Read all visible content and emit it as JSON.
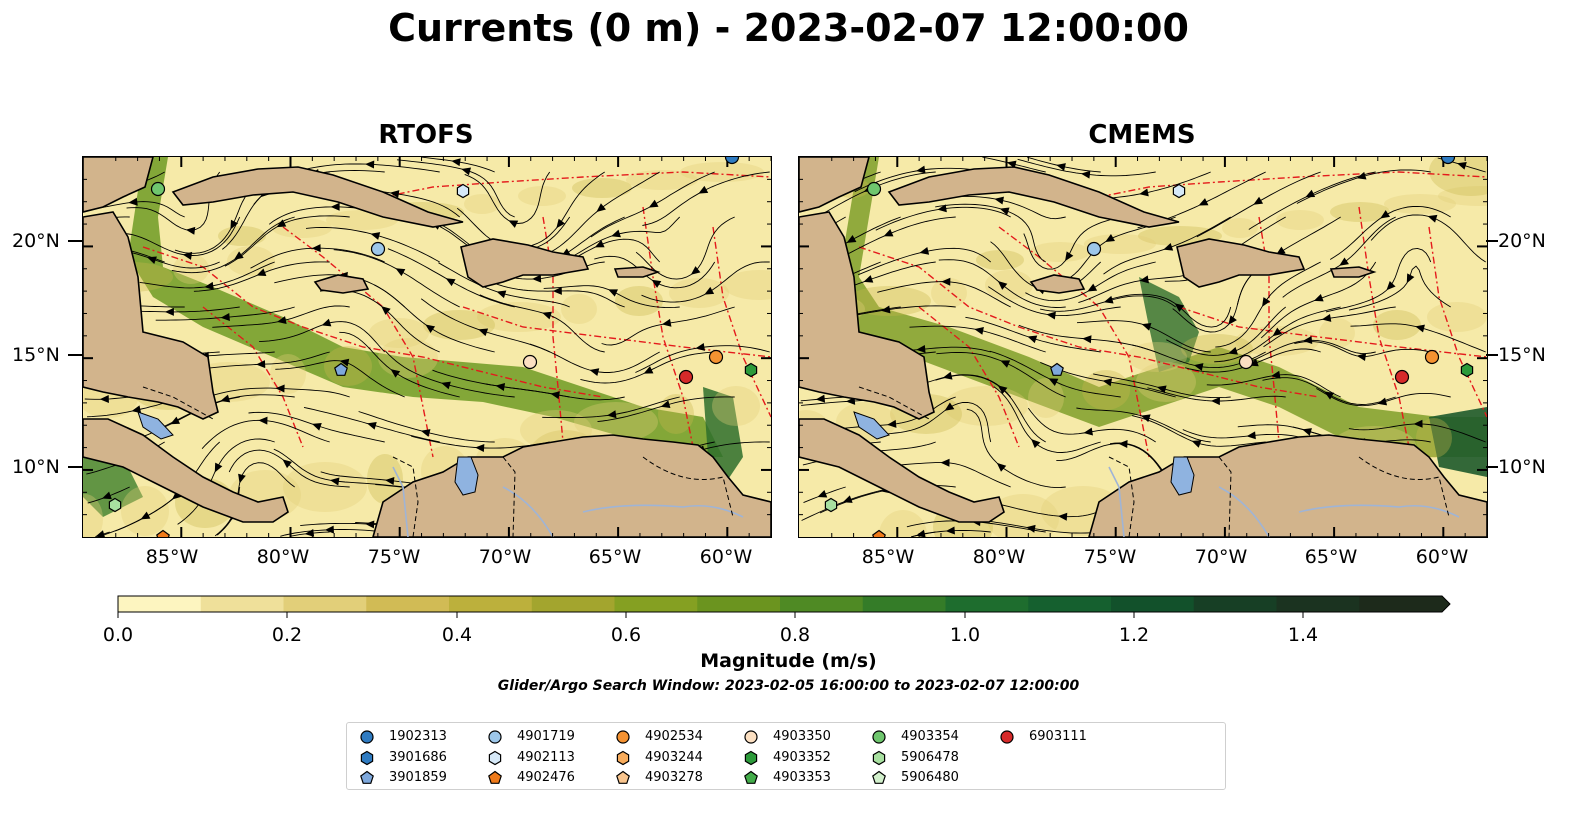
{
  "title": "Currents (0 m) - 2023-02-07 12:00:00",
  "panels": [
    {
      "title": "RTOFS"
    },
    {
      "title": "CMEMS"
    }
  ],
  "axes": {
    "x_ticks": [
      "85°W",
      "80°W",
      "75°W",
      "70°W",
      "65°W",
      "60°W"
    ],
    "y_ticks": [
      "20°N",
      "15°N",
      "10°N"
    ]
  },
  "colorbar": {
    "label": "Magnitude (m/s)",
    "ticks": [
      "0.0",
      "0.2",
      "0.4",
      "0.6",
      "0.8",
      "1.0",
      "1.2",
      "1.4"
    ],
    "colors": [
      "#fdf5c0",
      "#efe09a",
      "#e2cf79",
      "#d1bb55",
      "#bcb03c",
      "#a3a52e",
      "#85a022",
      "#6b941f",
      "#4f8a24",
      "#347c28",
      "#1e6d2e",
      "#15602f",
      "#12512b",
      "#173f25",
      "#1b3320",
      "#1d2a1b"
    ]
  },
  "search_window": "Glider/Argo Search Window: 2023-02-05 16:00:00 to 2023-02-07 12:00:00",
  "legend": {
    "items": [
      {
        "id": "1902313",
        "shape": "circle",
        "color": "#2f7bc1"
      },
      {
        "id": "3901686",
        "shape": "hexagon",
        "color": "#2f7bc1"
      },
      {
        "id": "3901859",
        "shape": "pentagon",
        "color": "#7ea8dc"
      },
      {
        "id": "4901719",
        "shape": "circle",
        "color": "#9dc7ea"
      },
      {
        "id": "4902113",
        "shape": "hexagon",
        "color": "#d6e9f8"
      },
      {
        "id": "4902476",
        "shape": "pentagon",
        "color": "#ef7a1a"
      },
      {
        "id": "4902534",
        "shape": "circle",
        "color": "#f59231"
      },
      {
        "id": "4903244",
        "shape": "hexagon",
        "color": "#f8ac5c"
      },
      {
        "id": "4903278",
        "shape": "pentagon",
        "color": "#f9c58e"
      },
      {
        "id": "4903350",
        "shape": "circle",
        "color": "#fce0c2"
      },
      {
        "id": "4903352",
        "shape": "hexagon",
        "color": "#2c9a3a"
      },
      {
        "id": "4903353",
        "shape": "pentagon",
        "color": "#43ac4a"
      },
      {
        "id": "4903354",
        "shape": "circle",
        "color": "#6fc66e"
      },
      {
        "id": "5906478",
        "shape": "hexagon",
        "color": "#a8e0a0"
      },
      {
        "id": "5906480",
        "shape": "pentagon",
        "color": "#d2f0cc"
      },
      {
        "id": "6903111",
        "shape": "circle",
        "color": "#d62a2a"
      }
    ]
  },
  "map_colors": {
    "land": "#d2b48c",
    "lake": "#8fb3e0",
    "boundary": "#e41a1c",
    "coast": "#000000"
  }
}
